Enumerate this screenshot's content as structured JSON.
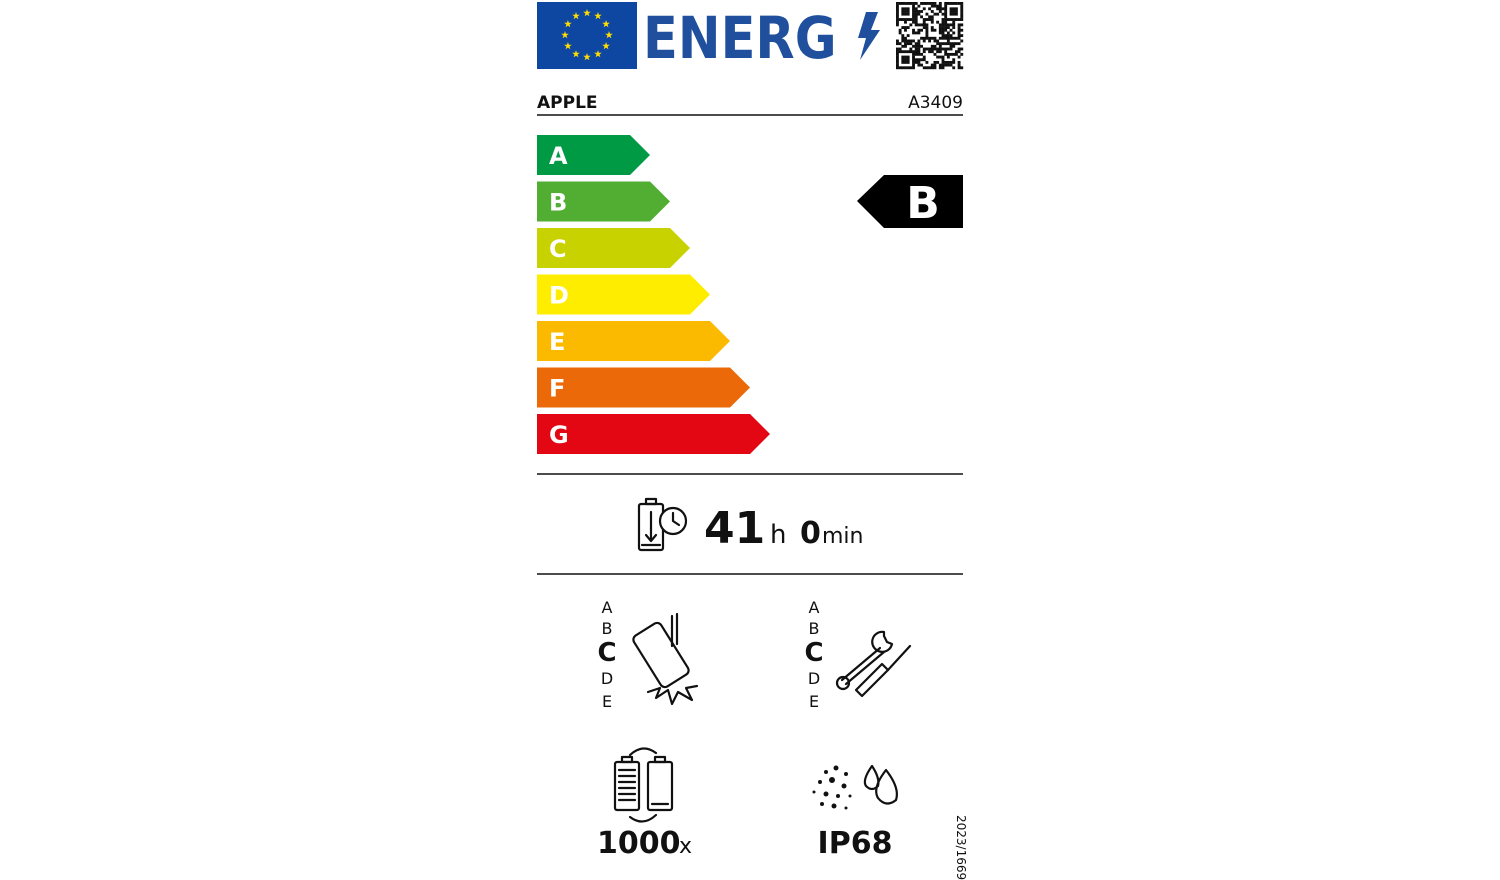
{
  "header": {
    "logo_text": "ENERG"
  },
  "supplier": "APPLE",
  "model": "A3409",
  "classes": [
    "A",
    "B",
    "C",
    "D",
    "E",
    "F",
    "G"
  ],
  "rating": "B",
  "battery_endurance": {
    "hours": 41,
    "hours_unit": "h",
    "minutes": 0,
    "minutes_unit": "min"
  },
  "drop_resistance": {
    "scale": [
      "A",
      "B",
      "C",
      "D",
      "E"
    ]
  },
  "repairability": {
    "scale": [
      "A",
      "B",
      "C",
      "D",
      "E"
    ]
  },
  "battery_cycles": {
    "value": 1000,
    "unit": "x"
  },
  "ingress_protection": "IP68",
  "regulation": "2023/1669"
}
